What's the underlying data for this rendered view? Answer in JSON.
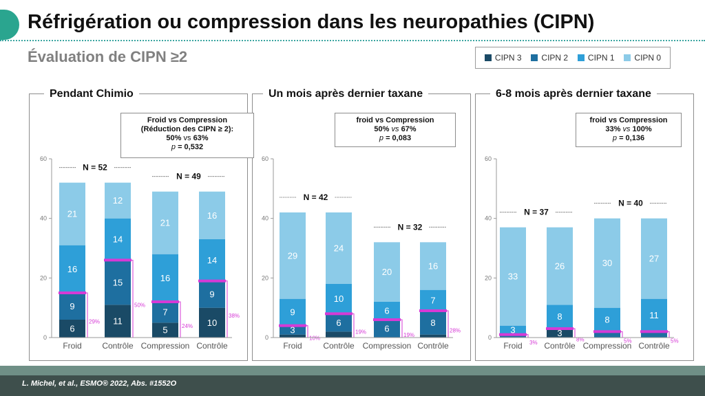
{
  "slide": {
    "title": "Réfrigération ou compression dans les neuropathies (CIPN)",
    "subtitle": "Évaluation de CIPN ≥2",
    "footer_citation": "L. Michel, et al., ESMO® 2022, Abs. #1552O"
  },
  "legend": [
    {
      "label": "CIPN 3",
      "color": "#1a4a66"
    },
    {
      "label": "CIPN 2",
      "color": "#1e6fa0"
    },
    {
      "label": "CIPN 1",
      "color": "#2e9fd8"
    },
    {
      "label": "CIPN 0",
      "color": "#8ccbe8"
    }
  ],
  "colors": {
    "cipn3": "#1a4a66",
    "cipn2": "#1e6fa0",
    "cipn1": "#2e9fd8",
    "cipn0": "#8ccbe8",
    "marker": "#d63ad6",
    "bracket": "#d63ad6"
  },
  "panels": [
    {
      "title": "Pendant Chimio",
      "stat": {
        "line1": "Froid vs Compression",
        "line2": "(Réduction des CIPN ≥ 2):",
        "line3a": "50%",
        "line3b": "vs",
        "line3c": "63%",
        "line4a": "p",
        "line4b": "= 0,532"
      }
    },
    {
      "title": "Un mois après dernier taxane",
      "stat": {
        "line1": "froid vs Compression",
        "line2": "",
        "line3a": "50%",
        "line3b": "vs",
        "line3c": "67%",
        "line4a": "p",
        "line4b": "= 0,083"
      }
    },
    {
      "title": "6-8 mois après dernier taxane",
      "stat": {
        "line1": "froid vs Compression",
        "line2": "",
        "line3a": "33%",
        "line3b": "vs",
        "line3c": "100%",
        "line4a": "p",
        "line4b": "= 0,136"
      }
    }
  ],
  "chart_data": [
    {
      "type": "bar",
      "stacked": true,
      "title": "Pendant Chimio",
      "categories": [
        "Froid",
        "Contrôle",
        "Compression",
        "Contrôle"
      ],
      "ylim": [
        0,
        60
      ],
      "yticks": [
        0,
        20,
        40,
        60
      ],
      "groups": [
        {
          "label": "N = 52"
        },
        {
          "label": "N = 49"
        }
      ],
      "series": [
        {
          "name": "CIPN 3",
          "values": [
            6,
            11,
            5,
            10
          ]
        },
        {
          "name": "CIPN 2",
          "values": [
            9,
            15,
            7,
            9
          ]
        },
        {
          "name": "CIPN 1",
          "values": [
            16,
            14,
            16,
            14
          ]
        },
        {
          "name": "CIPN 0",
          "values": [
            21,
            12,
            21,
            16
          ]
        }
      ],
      "percent_cipn2plus": [
        "29%",
        "50%",
        "24%",
        "38%"
      ]
    },
    {
      "type": "bar",
      "stacked": true,
      "title": "Un mois après dernier taxane",
      "categories": [
        "Froid",
        "Contrôle",
        "Compression",
        "Contrôle"
      ],
      "ylim": [
        0,
        60
      ],
      "yticks": [
        0,
        20,
        40,
        60
      ],
      "groups": [
        {
          "label": "N = 42"
        },
        {
          "label": "N = 32"
        }
      ],
      "series": [
        {
          "name": "CIPN 3",
          "values": [
            1,
            2,
            0,
            1
          ]
        },
        {
          "name": "CIPN 2",
          "values": [
            3,
            6,
            6,
            8
          ]
        },
        {
          "name": "CIPN 1",
          "values": [
            9,
            10,
            6,
            7
          ]
        },
        {
          "name": "CIPN 0",
          "values": [
            29,
            24,
            20,
            16
          ]
        }
      ],
      "percent_cipn2plus": [
        "10%",
        "19%",
        "19%",
        "28%"
      ]
    },
    {
      "type": "bar",
      "stacked": true,
      "title": "6-8 mois après dernier taxane",
      "categories": [
        "Froid",
        "Contrôle",
        "Compression",
        "Contrôle"
      ],
      "ylim": [
        0,
        60
      ],
      "yticks": [
        0,
        20,
        40,
        60
      ],
      "groups": [
        {
          "label": "N = 37"
        },
        {
          "label": "N = 40"
        }
      ],
      "series": [
        {
          "name": "CIPN 3",
          "values": [
            0,
            3,
            0,
            0
          ]
        },
        {
          "name": "CIPN 2",
          "values": [
            1,
            0,
            2,
            2
          ]
        },
        {
          "name": "CIPN 1",
          "values": [
            3,
            8,
            8,
            11
          ]
        },
        {
          "name": "CIPN 0",
          "values": [
            33,
            26,
            30,
            27
          ]
        }
      ],
      "percent_cipn2plus": [
        "3%",
        "8%",
        "5%",
        "5%"
      ]
    }
  ]
}
